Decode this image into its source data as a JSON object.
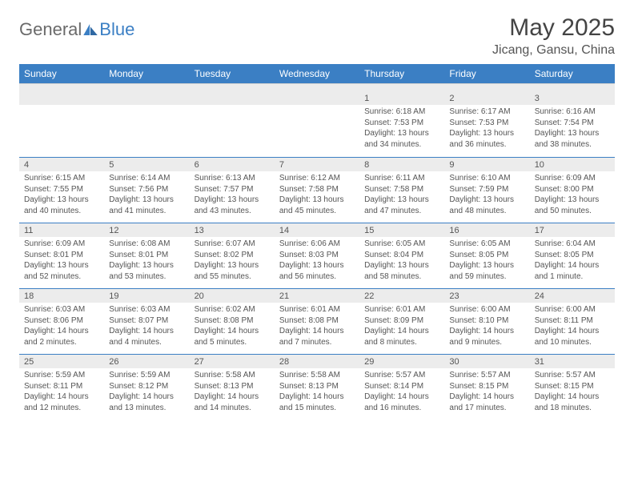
{
  "logo": {
    "part1": "General",
    "part2": "Blue"
  },
  "title": "May 2025",
  "location": "Jicang, Gansu, China",
  "day_names": [
    "Sunday",
    "Monday",
    "Tuesday",
    "Wednesday",
    "Thursday",
    "Friday",
    "Saturday"
  ],
  "colors": {
    "header_bg": "#3b7fc4",
    "header_text": "#ffffff",
    "date_row_bg": "#ececec",
    "body_text": "#555555",
    "divider": "#3b7fc4"
  },
  "typography": {
    "title_fontsize": 30,
    "location_fontsize": 16,
    "day_header_fontsize": 12,
    "cell_fontsize": 10
  },
  "weeks": [
    [
      {
        "date": "",
        "sunrise": "",
        "sunset": "",
        "daylight1": "",
        "daylight2": ""
      },
      {
        "date": "",
        "sunrise": "",
        "sunset": "",
        "daylight1": "",
        "daylight2": ""
      },
      {
        "date": "",
        "sunrise": "",
        "sunset": "",
        "daylight1": "",
        "daylight2": ""
      },
      {
        "date": "",
        "sunrise": "",
        "sunset": "",
        "daylight1": "",
        "daylight2": ""
      },
      {
        "date": "1",
        "sunrise": "Sunrise: 6:18 AM",
        "sunset": "Sunset: 7:53 PM",
        "daylight1": "Daylight: 13 hours",
        "daylight2": "and 34 minutes."
      },
      {
        "date": "2",
        "sunrise": "Sunrise: 6:17 AM",
        "sunset": "Sunset: 7:53 PM",
        "daylight1": "Daylight: 13 hours",
        "daylight2": "and 36 minutes."
      },
      {
        "date": "3",
        "sunrise": "Sunrise: 6:16 AM",
        "sunset": "Sunset: 7:54 PM",
        "daylight1": "Daylight: 13 hours",
        "daylight2": "and 38 minutes."
      }
    ],
    [
      {
        "date": "4",
        "sunrise": "Sunrise: 6:15 AM",
        "sunset": "Sunset: 7:55 PM",
        "daylight1": "Daylight: 13 hours",
        "daylight2": "and 40 minutes."
      },
      {
        "date": "5",
        "sunrise": "Sunrise: 6:14 AM",
        "sunset": "Sunset: 7:56 PM",
        "daylight1": "Daylight: 13 hours",
        "daylight2": "and 41 minutes."
      },
      {
        "date": "6",
        "sunrise": "Sunrise: 6:13 AM",
        "sunset": "Sunset: 7:57 PM",
        "daylight1": "Daylight: 13 hours",
        "daylight2": "and 43 minutes."
      },
      {
        "date": "7",
        "sunrise": "Sunrise: 6:12 AM",
        "sunset": "Sunset: 7:58 PM",
        "daylight1": "Daylight: 13 hours",
        "daylight2": "and 45 minutes."
      },
      {
        "date": "8",
        "sunrise": "Sunrise: 6:11 AM",
        "sunset": "Sunset: 7:58 PM",
        "daylight1": "Daylight: 13 hours",
        "daylight2": "and 47 minutes."
      },
      {
        "date": "9",
        "sunrise": "Sunrise: 6:10 AM",
        "sunset": "Sunset: 7:59 PM",
        "daylight1": "Daylight: 13 hours",
        "daylight2": "and 48 minutes."
      },
      {
        "date": "10",
        "sunrise": "Sunrise: 6:09 AM",
        "sunset": "Sunset: 8:00 PM",
        "daylight1": "Daylight: 13 hours",
        "daylight2": "and 50 minutes."
      }
    ],
    [
      {
        "date": "11",
        "sunrise": "Sunrise: 6:09 AM",
        "sunset": "Sunset: 8:01 PM",
        "daylight1": "Daylight: 13 hours",
        "daylight2": "and 52 minutes."
      },
      {
        "date": "12",
        "sunrise": "Sunrise: 6:08 AM",
        "sunset": "Sunset: 8:01 PM",
        "daylight1": "Daylight: 13 hours",
        "daylight2": "and 53 minutes."
      },
      {
        "date": "13",
        "sunrise": "Sunrise: 6:07 AM",
        "sunset": "Sunset: 8:02 PM",
        "daylight1": "Daylight: 13 hours",
        "daylight2": "and 55 minutes."
      },
      {
        "date": "14",
        "sunrise": "Sunrise: 6:06 AM",
        "sunset": "Sunset: 8:03 PM",
        "daylight1": "Daylight: 13 hours",
        "daylight2": "and 56 minutes."
      },
      {
        "date": "15",
        "sunrise": "Sunrise: 6:05 AM",
        "sunset": "Sunset: 8:04 PM",
        "daylight1": "Daylight: 13 hours",
        "daylight2": "and 58 minutes."
      },
      {
        "date": "16",
        "sunrise": "Sunrise: 6:05 AM",
        "sunset": "Sunset: 8:05 PM",
        "daylight1": "Daylight: 13 hours",
        "daylight2": "and 59 minutes."
      },
      {
        "date": "17",
        "sunrise": "Sunrise: 6:04 AM",
        "sunset": "Sunset: 8:05 PM",
        "daylight1": "Daylight: 14 hours",
        "daylight2": "and 1 minute."
      }
    ],
    [
      {
        "date": "18",
        "sunrise": "Sunrise: 6:03 AM",
        "sunset": "Sunset: 8:06 PM",
        "daylight1": "Daylight: 14 hours",
        "daylight2": "and 2 minutes."
      },
      {
        "date": "19",
        "sunrise": "Sunrise: 6:03 AM",
        "sunset": "Sunset: 8:07 PM",
        "daylight1": "Daylight: 14 hours",
        "daylight2": "and 4 minutes."
      },
      {
        "date": "20",
        "sunrise": "Sunrise: 6:02 AM",
        "sunset": "Sunset: 8:08 PM",
        "daylight1": "Daylight: 14 hours",
        "daylight2": "and 5 minutes."
      },
      {
        "date": "21",
        "sunrise": "Sunrise: 6:01 AM",
        "sunset": "Sunset: 8:08 PM",
        "daylight1": "Daylight: 14 hours",
        "daylight2": "and 7 minutes."
      },
      {
        "date": "22",
        "sunrise": "Sunrise: 6:01 AM",
        "sunset": "Sunset: 8:09 PM",
        "daylight1": "Daylight: 14 hours",
        "daylight2": "and 8 minutes."
      },
      {
        "date": "23",
        "sunrise": "Sunrise: 6:00 AM",
        "sunset": "Sunset: 8:10 PM",
        "daylight1": "Daylight: 14 hours",
        "daylight2": "and 9 minutes."
      },
      {
        "date": "24",
        "sunrise": "Sunrise: 6:00 AM",
        "sunset": "Sunset: 8:11 PM",
        "daylight1": "Daylight: 14 hours",
        "daylight2": "and 10 minutes."
      }
    ],
    [
      {
        "date": "25",
        "sunrise": "Sunrise: 5:59 AM",
        "sunset": "Sunset: 8:11 PM",
        "daylight1": "Daylight: 14 hours",
        "daylight2": "and 12 minutes."
      },
      {
        "date": "26",
        "sunrise": "Sunrise: 5:59 AM",
        "sunset": "Sunset: 8:12 PM",
        "daylight1": "Daylight: 14 hours",
        "daylight2": "and 13 minutes."
      },
      {
        "date": "27",
        "sunrise": "Sunrise: 5:58 AM",
        "sunset": "Sunset: 8:13 PM",
        "daylight1": "Daylight: 14 hours",
        "daylight2": "and 14 minutes."
      },
      {
        "date": "28",
        "sunrise": "Sunrise: 5:58 AM",
        "sunset": "Sunset: 8:13 PM",
        "daylight1": "Daylight: 14 hours",
        "daylight2": "and 15 minutes."
      },
      {
        "date": "29",
        "sunrise": "Sunrise: 5:57 AM",
        "sunset": "Sunset: 8:14 PM",
        "daylight1": "Daylight: 14 hours",
        "daylight2": "and 16 minutes."
      },
      {
        "date": "30",
        "sunrise": "Sunrise: 5:57 AM",
        "sunset": "Sunset: 8:15 PM",
        "daylight1": "Daylight: 14 hours",
        "daylight2": "and 17 minutes."
      },
      {
        "date": "31",
        "sunrise": "Sunrise: 5:57 AM",
        "sunset": "Sunset: 8:15 PM",
        "daylight1": "Daylight: 14 hours",
        "daylight2": "and 18 minutes."
      }
    ]
  ]
}
